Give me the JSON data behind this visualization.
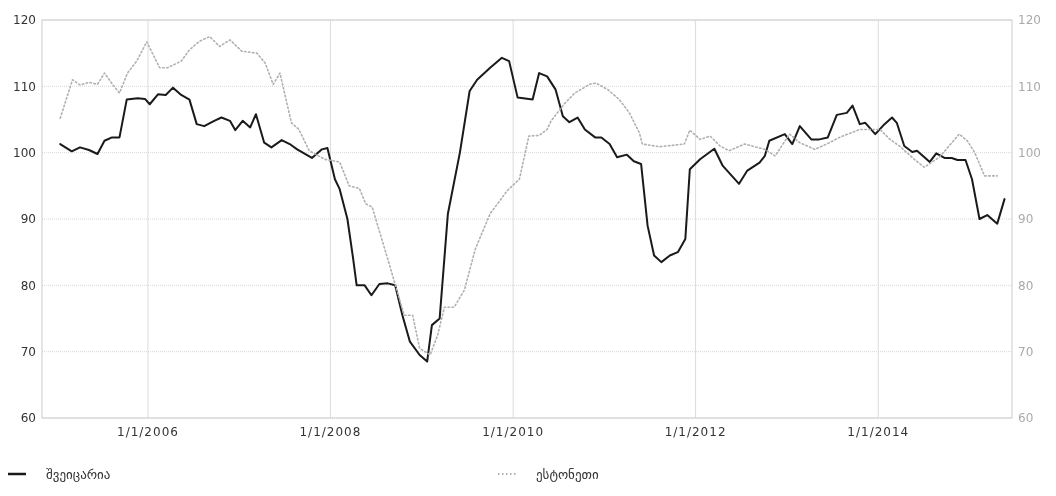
{
  "chart_data": {
    "type": "line",
    "xlim": [
      "2004-11-03",
      "2015-06-20"
    ],
    "xticks": [
      {
        "value": "2006-01-01",
        "label": "1/1/2006"
      },
      {
        "value": "2008-01-01",
        "label": "1/1/2008"
      },
      {
        "value": "2010-01-01",
        "label": "1/1/2010"
      },
      {
        "value": "2012-01-01",
        "label": "1/1/2012"
      },
      {
        "value": "2014-01-01",
        "label": "1/1/2014"
      }
    ],
    "ylim": [
      60,
      120
    ],
    "yticks": [
      60,
      70,
      80,
      90,
      100,
      110,
      120
    ],
    "y2lim": [
      60,
      120
    ],
    "y2ticks": [
      60,
      70,
      80,
      90,
      100,
      110,
      120
    ],
    "grid": true,
    "legend": "bottom",
    "series": [
      {
        "name": "შვეიცარია",
        "color": "#1a1a1a",
        "line_style": "solid",
        "x": [
          "2005-01-15",
          "2005-03-02",
          "2005-04-04",
          "2005-05-10",
          "2005-06-13",
          "2005-07-11",
          "2005-08-10",
          "2005-09-09",
          "2005-10-08",
          "2005-11-21",
          "2005-12-20",
          "2006-01-08",
          "2006-02-10",
          "2006-03-13",
          "2006-04-11",
          "2006-05-14",
          "2006-06-16",
          "2006-07-15",
          "2006-08-14",
          "2006-09-23",
          "2006-10-22",
          "2006-11-25",
          "2006-12-16",
          "2007-01-15",
          "2007-02-14",
          "2007-03-09",
          "2007-04-11",
          "2007-05-10",
          "2007-06-20",
          "2007-07-22",
          "2007-08-21",
          "2007-10-19",
          "2007-11-28",
          "2007-12-20",
          "2008-01-19",
          "2008-02-07",
          "2008-03-09",
          "2008-04-01",
          "2008-04-15",
          "2008-05-17",
          "2008-06-13",
          "2008-07-15",
          "2008-08-17",
          "2008-09-16",
          "2008-10-15",
          "2008-11-14",
          "2008-12-23",
          "2009-01-22",
          "2009-02-10",
          "2009-03-13",
          "2009-04-15",
          "2009-06-02",
          "2009-07-11",
          "2009-08-10",
          "2009-10-01",
          "2009-11-17",
          "2009-12-16",
          "2010-01-19",
          "2010-03-20",
          "2010-04-15",
          "2010-05-17",
          "2010-06-20",
          "2010-07-19",
          "2010-08-14",
          "2010-09-16",
          "2010-10-15",
          "2010-11-25",
          "2010-12-20",
          "2011-01-22",
          "2011-02-21",
          "2011-04-01",
          "2011-04-29",
          "2011-05-28",
          "2011-06-23",
          "2011-07-19",
          "2011-08-17",
          "2011-09-20",
          "2011-10-22",
          "2011-11-21",
          "2011-12-09",
          "2012-01-19",
          "2012-03-16",
          "2012-04-19",
          "2012-06-23",
          "2012-07-26",
          "2012-09-13",
          "2012-10-04",
          "2012-10-22",
          "2012-12-23",
          "2013-01-22",
          "2013-02-21",
          "2013-04-08",
          "2013-05-10",
          "2013-06-13",
          "2013-07-19",
          "2013-08-28",
          "2013-09-20",
          "2013-10-19",
          "2013-11-10",
          "2013-12-20",
          "2014-01-26",
          "2014-02-25",
          "2014-03-16",
          "2014-04-15",
          "2014-05-17",
          "2014-06-05",
          "2014-07-26",
          "2014-08-21",
          "2014-09-23",
          "2014-10-22",
          "2014-11-14",
          "2014-12-16",
          "2015-01-11",
          "2015-02-10",
          "2015-03-13",
          "2015-04-22",
          "2015-05-21"
        ],
        "values": [
          101.3,
          100.2,
          100.8,
          100.4,
          99.8,
          101.8,
          102.3,
          102.3,
          108,
          108.2,
          108.1,
          107.3,
          108.8,
          108.7,
          109.8,
          108.7,
          108,
          104.3,
          104,
          104.8,
          105.3,
          104.8,
          103.4,
          104.8,
          103.8,
          105.8,
          101.5,
          100.8,
          101.9,
          101.3,
          100.5,
          99.2,
          100.5,
          100.7,
          96,
          94.5,
          90,
          84,
          80,
          80,
          78.5,
          80.2,
          80.3,
          80,
          75.5,
          71.5,
          69.5,
          68.5,
          74,
          75,
          90.8,
          100,
          109.3,
          111,
          112.8,
          114.3,
          113.8,
          108.3,
          108,
          112,
          111.5,
          109.5,
          105.5,
          104.6,
          105.3,
          103.5,
          102.3,
          102.3,
          101.3,
          99.3,
          99.7,
          98.7,
          98.3,
          89,
          84.5,
          83.5,
          84.5,
          85,
          87,
          97.5,
          99,
          100.6,
          98,
          95.3,
          97.3,
          98.5,
          99.5,
          101.8,
          102.8,
          101.3,
          104,
          102,
          102,
          102.3,
          105.7,
          106,
          107.1,
          104.3,
          104.5,
          102.8,
          104.3,
          105.3,
          104.5,
          101,
          100.1,
          100.3,
          98.6,
          99.9,
          99.2,
          99.2,
          98.9,
          98.9,
          96,
          90,
          90.6,
          89.3,
          93
        ]
      },
      {
        "name": "ესტონეთი",
        "color": "#b0b0b0",
        "line_style": "dotted",
        "x": [
          "2005-01-15",
          "2005-03-05",
          "2005-04-04",
          "2005-05-10",
          "2005-06-13",
          "2005-07-11",
          "2005-08-14",
          "2005-09-09",
          "2005-10-11",
          "2005-11-17",
          "2005-12-27",
          "2006-02-17",
          "2006-03-20",
          "2006-05-14",
          "2006-06-16",
          "2006-07-26",
          "2006-09-05",
          "2006-10-15",
          "2006-11-25",
          "2007-01-11",
          "2007-03-13",
          "2007-04-15",
          "2007-05-17",
          "2007-06-13",
          "2007-07-29",
          "2007-08-28",
          "2007-10-08",
          "2007-12-09",
          "2008-02-07",
          "2008-03-16",
          "2008-04-26",
          "2008-05-21",
          "2008-06-16",
          "2008-08-25",
          "2008-10-22",
          "2008-11-25",
          "2008-12-23",
          "2009-02-03",
          "2009-03-05",
          "2009-04-01",
          "2009-05-10",
          "2009-06-20",
          "2009-08-03",
          "2009-10-01",
          "2009-12-09",
          "2010-01-26",
          "2010-03-05",
          "2010-04-15",
          "2010-05-17",
          "2010-06-02",
          "2010-07-26",
          "2010-09-05",
          "2010-11-03",
          "2010-11-28",
          "2011-01-15",
          "2011-03-02",
          "2011-04-11",
          "2011-05-21",
          "2011-06-02",
          "2011-08-10",
          "2011-11-17",
          "2011-12-09",
          "2012-01-19",
          "2012-02-28",
          "2012-04-08",
          "2012-05-14",
          "2012-07-15",
          "2012-10-04",
          "2012-11-14",
          "2013-01-11",
          "2013-02-21",
          "2013-04-22",
          "2013-06-20",
          "2013-07-29",
          "2013-10-19",
          "2014-01-08",
          "2014-02-17",
          "2014-03-27",
          "2014-05-25",
          "2014-07-04",
          "2014-09-02",
          "2014-10-11",
          "2014-11-21",
          "2014-12-23",
          "2015-01-22",
          "2015-03-02",
          "2015-04-22"
        ],
        "values": [
          105.2,
          111,
          110.2,
          110.6,
          110.3,
          112,
          110.2,
          109,
          112,
          113.8,
          116.7,
          112.8,
          112.8,
          113.8,
          115.5,
          116.8,
          117.5,
          116,
          117,
          115.3,
          115,
          113.5,
          110.3,
          112,
          104.5,
          103.5,
          100.3,
          99,
          98.6,
          95,
          94.6,
          92.3,
          91.8,
          83,
          75.5,
          75.5,
          70.5,
          69.5,
          72.5,
          76.7,
          76.7,
          79.3,
          85.5,
          90.8,
          94.3,
          96,
          102.5,
          102.6,
          103.5,
          104.8,
          107.4,
          109,
          110.3,
          110.5,
          109.5,
          108,
          106,
          103,
          101.3,
          100.9,
          101.3,
          103.4,
          102,
          102.5,
          101,
          100.3,
          101.3,
          100.5,
          99.5,
          102.8,
          101.5,
          100.5,
          101.5,
          102.3,
          103.5,
          103.5,
          102,
          101,
          99,
          97.8,
          99.3,
          101,
          102.8,
          101.8,
          100,
          96.5,
          96.5
        ]
      }
    ]
  }
}
